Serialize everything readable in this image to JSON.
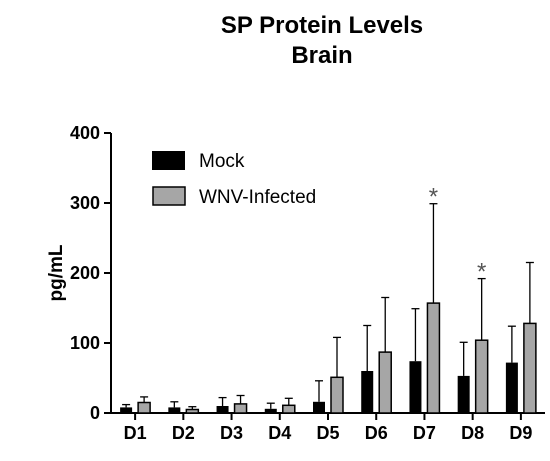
{
  "chart_data": {
    "type": "bar",
    "title_lines": [
      "SP  Protein  Levels",
      "Brain"
    ],
    "xlabel": "",
    "ylabel": "pg/mL",
    "ylim": [
      0,
      400
    ],
    "yticks": [
      0,
      100,
      200,
      300,
      400
    ],
    "categories": [
      "D1",
      "D2",
      "D3",
      "D4",
      "D5",
      "D6",
      "D7",
      "D8",
      "D9"
    ],
    "series": [
      {
        "name": "Mock",
        "color": "#000000",
        "values": [
          8,
          8,
          10,
          6,
          16,
          60,
          74,
          53,
          72
        ],
        "errors": [
          4,
          8,
          12,
          8,
          30,
          65,
          75,
          48,
          52
        ]
      },
      {
        "name": "WNV-Infected",
        "color": "#a6a6a6",
        "values": [
          15,
          5,
          13,
          11,
          51,
          87,
          157,
          104,
          128
        ],
        "errors": [
          8,
          4,
          12,
          10,
          57,
          78,
          142,
          88,
          87
        ]
      }
    ],
    "significance": [
      {
        "category": "D7",
        "series": "WNV-Infected",
        "label": "*"
      },
      {
        "category": "D8",
        "series": "WNV-Infected",
        "label": "*"
      }
    ],
    "legend_position": "top-left",
    "grid": false
  }
}
